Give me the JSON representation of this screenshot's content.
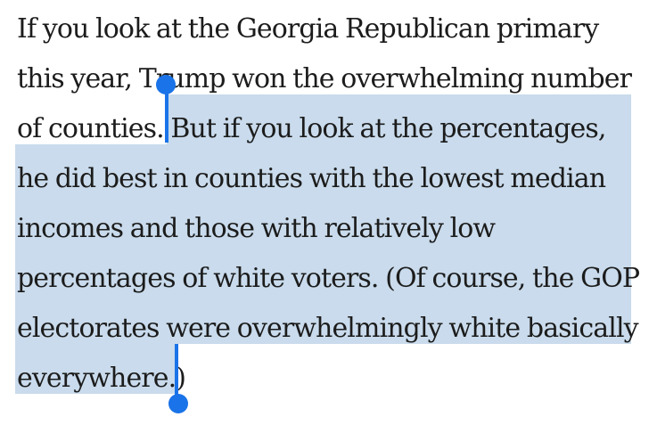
{
  "paragraph": {
    "lines": [
      "If you look at the Georgia Republican primary",
      "this year, Trump won the overwhelming number",
      "of counties. But if you look at the percentages,",
      "he did best in counties with the lowest median",
      "incomes and those with relatively low",
      "percentages of white voters. (Of course, the GOP",
      "electorates were overwhelmingly white basically",
      "everywhere.)"
    ]
  },
  "selection": {
    "highlight_color": "#c9dbec",
    "handle_color": "#1a73e8"
  }
}
